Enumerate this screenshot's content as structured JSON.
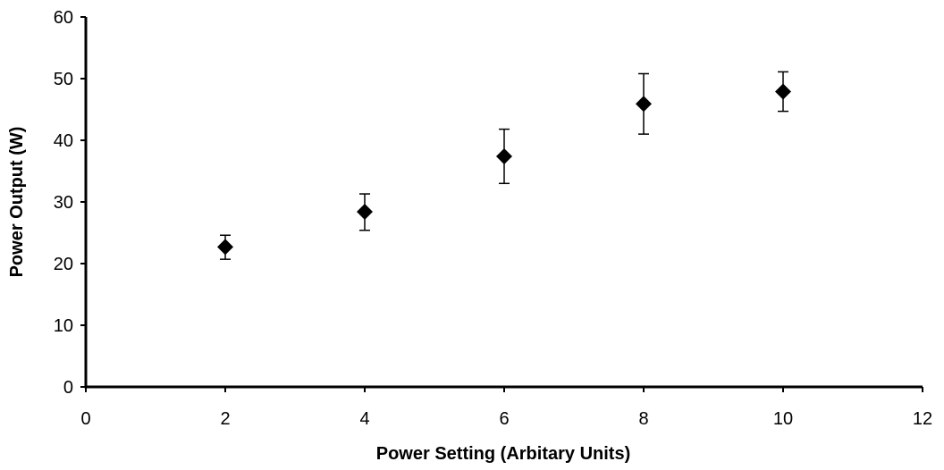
{
  "chart_data": {
    "type": "scatter",
    "title": "",
    "xlabel": "Power Setting (Arbitary Units)",
    "ylabel": "Power Output (W)",
    "xlim": [
      0,
      12
    ],
    "ylim": [
      0,
      60
    ],
    "x_ticks": [
      "0",
      "2",
      "4",
      "6",
      "8",
      "10",
      "12"
    ],
    "y_ticks": [
      "0",
      "10",
      "20",
      "30",
      "40",
      "50",
      "60"
    ],
    "x_tick_values": [
      0,
      2,
      4,
      6,
      8,
      10,
      12
    ],
    "y_tick_values": [
      0,
      10,
      20,
      30,
      40,
      50,
      60
    ],
    "grid": false,
    "legend": "none",
    "marker": "diamond",
    "marker_color": "#000000",
    "axis_color": "#000000",
    "series": [
      {
        "points": [
          {
            "x": 2,
            "y": 22.7,
            "err_low": 20.7,
            "err_high": 24.6
          },
          {
            "x": 4,
            "y": 28.4,
            "err_low": 25.4,
            "err_high": 31.3
          },
          {
            "x": 6,
            "y": 37.4,
            "err_low": 33.0,
            "err_high": 41.8
          },
          {
            "x": 8,
            "y": 45.9,
            "err_low": 41.0,
            "err_high": 50.8
          },
          {
            "x": 10,
            "y": 47.9,
            "err_low": 44.7,
            "err_high": 51.1
          }
        ]
      }
    ]
  }
}
